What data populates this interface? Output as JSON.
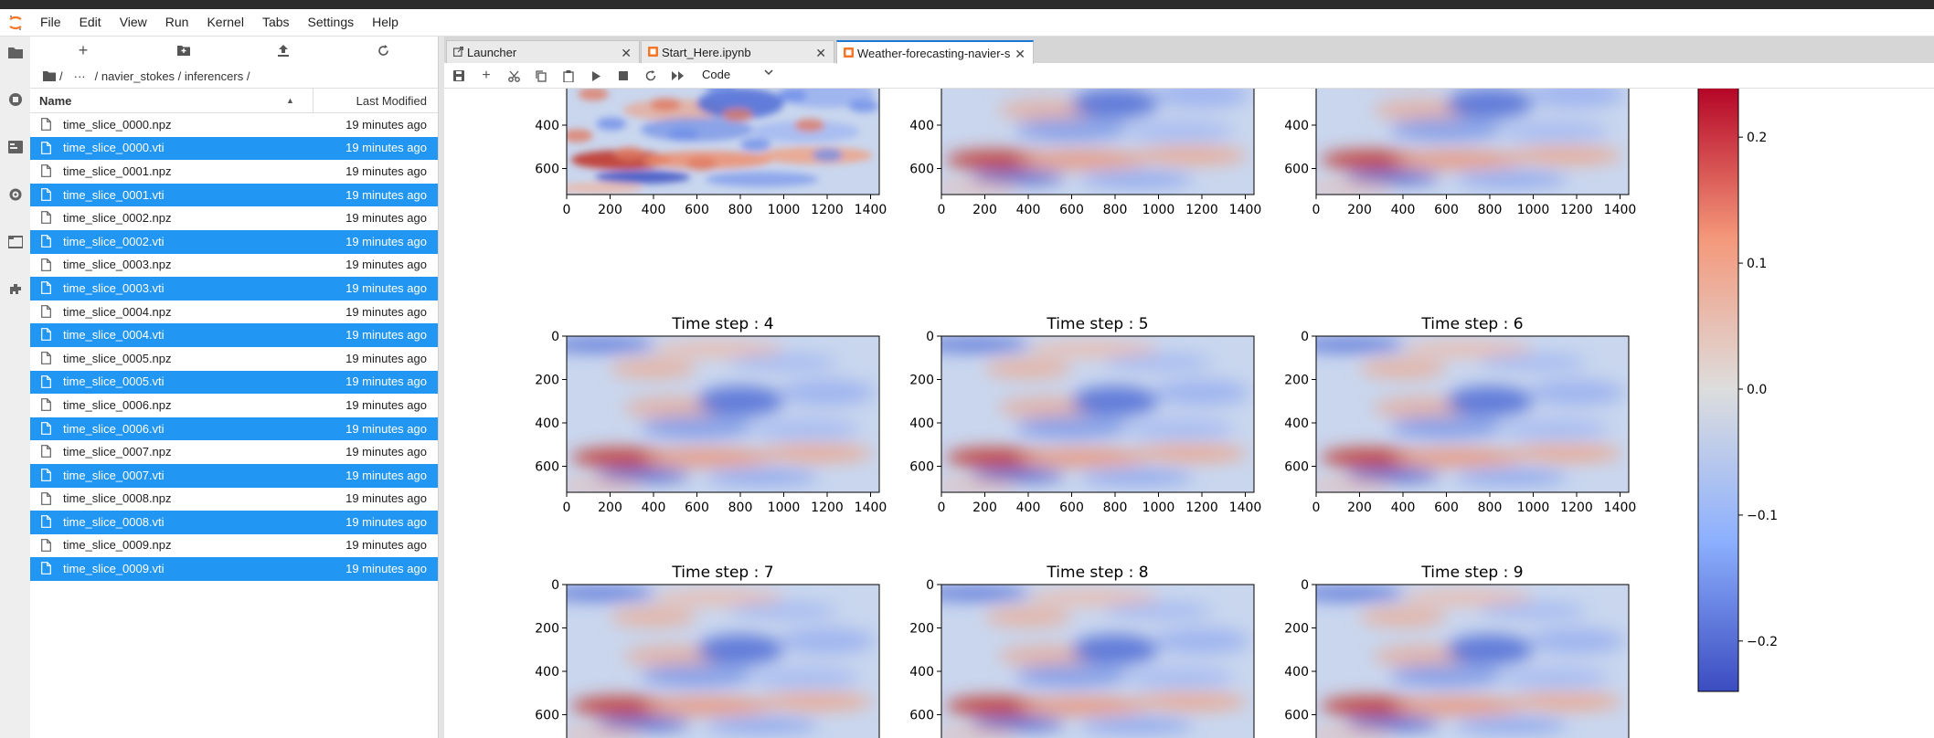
{
  "menubar": {
    "items": [
      "File",
      "Edit",
      "View",
      "Run",
      "Kernel",
      "Tabs",
      "Settings",
      "Help"
    ]
  },
  "activitybar": {
    "icons": [
      "folder-icon",
      "running-icon",
      "commands-icon",
      "property-inspector-icon",
      "tabs-icon",
      "extension-icon"
    ]
  },
  "filebrowser": {
    "breadcrumb": {
      "root": "/",
      "ellipsis": "···",
      "path": "/ navier_stokes / inferencers /"
    },
    "columns": {
      "name": "Name",
      "modified": "Last Modified"
    },
    "files": [
      {
        "name": "time_slice_0000.npz",
        "modified": "19 minutes ago",
        "selected": false
      },
      {
        "name": "time_slice_0000.vti",
        "modified": "19 minutes ago",
        "selected": true
      },
      {
        "name": "time_slice_0001.npz",
        "modified": "19 minutes ago",
        "selected": false
      },
      {
        "name": "time_slice_0001.vti",
        "modified": "19 minutes ago",
        "selected": true
      },
      {
        "name": "time_slice_0002.npz",
        "modified": "19 minutes ago",
        "selected": false
      },
      {
        "name": "time_slice_0002.vti",
        "modified": "19 minutes ago",
        "selected": true
      },
      {
        "name": "time_slice_0003.npz",
        "modified": "19 minutes ago",
        "selected": false
      },
      {
        "name": "time_slice_0003.vti",
        "modified": "19 minutes ago",
        "selected": true
      },
      {
        "name": "time_slice_0004.npz",
        "modified": "19 minutes ago",
        "selected": false
      },
      {
        "name": "time_slice_0004.vti",
        "modified": "19 minutes ago",
        "selected": true
      },
      {
        "name": "time_slice_0005.npz",
        "modified": "19 minutes ago",
        "selected": false
      },
      {
        "name": "time_slice_0005.vti",
        "modified": "19 minutes ago",
        "selected": true
      },
      {
        "name": "time_slice_0006.npz",
        "modified": "19 minutes ago",
        "selected": false
      },
      {
        "name": "time_slice_0006.vti",
        "modified": "19 minutes ago",
        "selected": true
      },
      {
        "name": "time_slice_0007.npz",
        "modified": "19 minutes ago",
        "selected": false
      },
      {
        "name": "time_slice_0007.vti",
        "modified": "19 minutes ago",
        "selected": true
      },
      {
        "name": "time_slice_0008.npz",
        "modified": "19 minutes ago",
        "selected": false
      },
      {
        "name": "time_slice_0008.vti",
        "modified": "19 minutes ago",
        "selected": true
      },
      {
        "name": "time_slice_0009.npz",
        "modified": "19 minutes ago",
        "selected": false
      },
      {
        "name": "time_slice_0009.vti",
        "modified": "19 minutes ago",
        "selected": true
      }
    ]
  },
  "tabs": [
    {
      "label": "Launcher",
      "icon": "launcher-icon",
      "active": false
    },
    {
      "label": "Start_Here.ipynb",
      "icon": "notebook-icon",
      "active": false
    },
    {
      "label": "Weather-forecasting-navier-s",
      "icon": "notebook-icon",
      "active": true
    }
  ],
  "notebook_toolbar": {
    "cell_type": "Code"
  },
  "colors": {
    "accent": "#1976d2",
    "selection": "#2196f3",
    "coolwarm_low": "#3b4cc0",
    "coolwarm_mid": "#dddddd",
    "coolwarm_high": "#b40426"
  },
  "chart_data": {
    "type": "heatmap",
    "colormap": "coolwarm",
    "panels": [
      {
        "title": "",
        "visible_partially": true
      },
      {
        "title": "",
        "visible_partially": true
      },
      {
        "title": "",
        "visible_partially": true
      },
      {
        "title": "Time step : 4"
      },
      {
        "title": "Time step : 5"
      },
      {
        "title": "Time step : 6"
      },
      {
        "title": "Time step : 7"
      },
      {
        "title": "Time step : 8"
      },
      {
        "title": "Time step : 9"
      }
    ],
    "x_ticks": [
      "0",
      "200",
      "400",
      "600",
      "800",
      "1000",
      "1200",
      "1400"
    ],
    "y_ticks": [
      "0",
      "200",
      "400",
      "600"
    ],
    "y_ticks_top_row": [
      "200",
      "400",
      "600"
    ],
    "xlim": [
      0,
      1440
    ],
    "ylim": [
      720,
      0
    ],
    "colorbar": {
      "ticks": [
        "0.2",
        "0.1",
        "0.0",
        "−0.1",
        "−0.2"
      ],
      "range": [
        -0.24,
        0.24
      ]
    }
  }
}
